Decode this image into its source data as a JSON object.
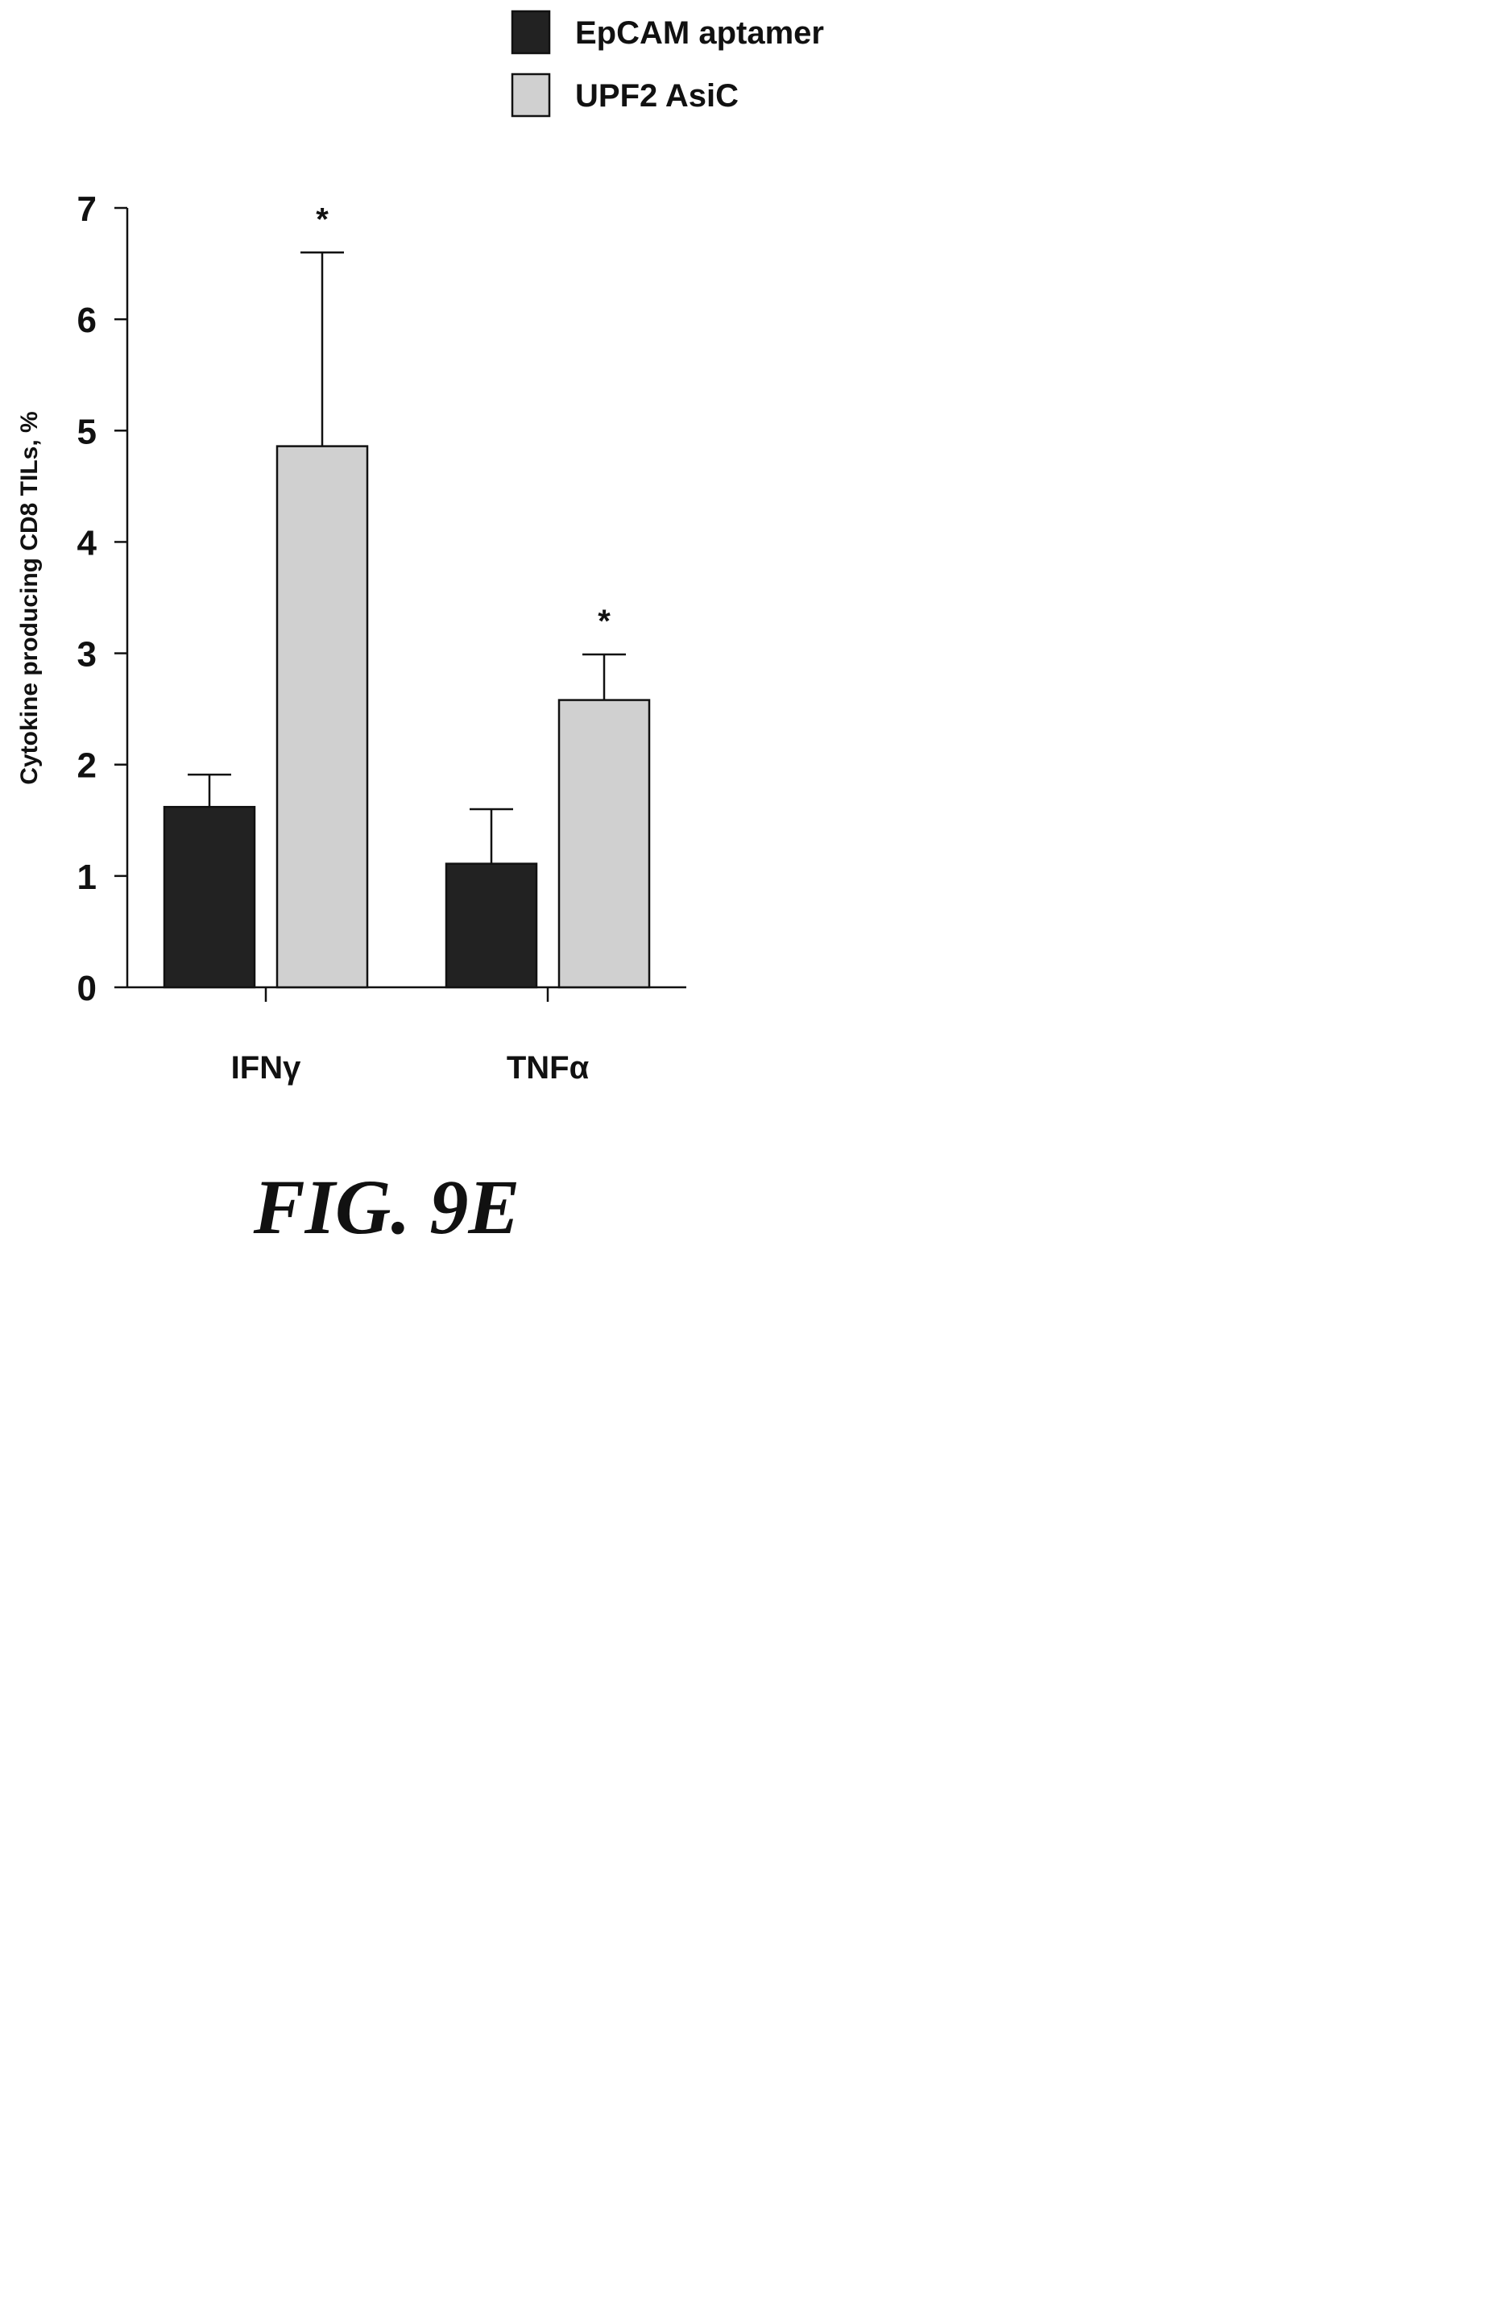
{
  "chart_data": {
    "type": "bar",
    "categories": [
      "IFNγ",
      "TNFα"
    ],
    "series": [
      {
        "name": "EpCAM aptamer",
        "color": "#222222",
        "values": [
          1.62,
          1.11
        ],
        "errors": [
          0.29,
          0.49
        ],
        "significance": [
          "",
          ""
        ]
      },
      {
        "name": "UPF2 AsiC",
        "color": "#d0d0d0",
        "values": [
          4.86,
          2.58
        ],
        "errors": [
          1.74,
          0.41
        ],
        "significance": [
          "*",
          "*"
        ]
      }
    ],
    "ylabel": "Cytokine producing CD8 TILs, %",
    "xlabel": "",
    "ylim": [
      0,
      7
    ],
    "yticks": [
      0,
      1,
      2,
      3,
      4,
      5,
      6,
      7
    ],
    "legend_position": "top-right",
    "grid": false
  },
  "figure": {
    "caption": "FIG. 9E"
  }
}
